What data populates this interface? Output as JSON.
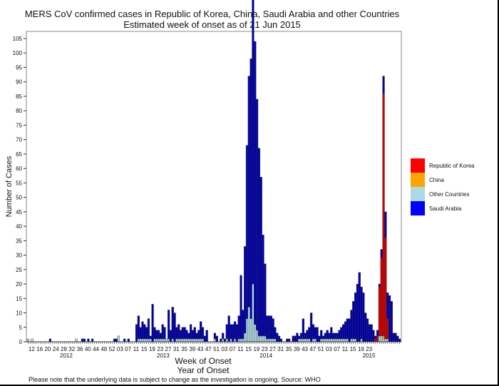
{
  "chart_data": {
    "type": "bar",
    "stacked": true,
    "title": "MERS CoV confirmed cases in Republic of Korea, China, Saudi Arabia and other Countries",
    "subtitle": "Estimated week of onset as of 21 Jun 2015",
    "xlabel": "Week of Onset",
    "xlabel2": "Year of Onset",
    "ylabel": "Number of Cases",
    "ylim": [
      0,
      107
    ],
    "yticks": [
      0,
      5,
      10,
      15,
      20,
      25,
      30,
      35,
      40,
      45,
      50,
      55,
      60,
      65,
      70,
      75,
      80,
      85,
      90,
      95,
      100,
      105
    ],
    "x_start": {
      "year": 2012,
      "week": 12
    },
    "x_week_ticks": [
      "12",
      "16",
      "20",
      "24",
      "28",
      "32",
      "36",
      "40",
      "44",
      "48",
      "52",
      "03",
      "07",
      "11",
      "15",
      "19",
      "23",
      "27",
      "31",
      "35",
      "39",
      "43",
      "47",
      "51",
      "03",
      "07",
      "11",
      "15",
      "19",
      "23",
      "27",
      "31",
      "35",
      "39",
      "43",
      "47",
      "51",
      "03",
      "07",
      "11",
      "15",
      "19",
      "23"
    ],
    "x_year_labels": [
      {
        "label": "2012",
        "week_index": 20
      },
      {
        "label": "2013",
        "week_index": 69
      },
      {
        "label": "2014",
        "week_index": 121
      },
      {
        "label": "2015",
        "week_index": 173
      }
    ],
    "legend": [
      {
        "name": "Republic of Korea",
        "color": "#ff0000"
      },
      {
        "name": "China",
        "color": "#ffa500"
      },
      {
        "name": "Other Countries",
        "color": "#add8e6"
      },
      {
        "name": "Saudi Arabia",
        "color": "#0000ff"
      }
    ],
    "series": [
      {
        "name": "Saudi Arabia",
        "color": "#0000aa",
        "values": [
          0,
          0,
          0,
          0,
          0,
          0,
          0,
          0,
          0,
          0,
          0,
          1,
          0,
          0,
          0,
          0,
          0,
          0,
          0,
          0,
          0,
          0,
          0,
          0,
          0,
          0,
          0,
          1,
          1,
          0,
          1,
          0,
          1,
          0,
          0,
          0,
          0,
          0,
          0,
          0,
          0,
          0,
          0,
          1,
          1,
          0,
          0,
          0,
          1,
          0,
          1,
          0,
          0,
          0,
          6,
          8,
          4,
          6,
          5,
          4,
          7,
          1,
          13,
          4,
          3,
          3,
          2,
          5,
          4,
          0,
          10,
          4,
          11,
          10,
          4,
          5,
          3,
          4,
          4,
          3,
          2,
          5,
          3,
          4,
          2,
          3,
          6,
          4,
          2,
          4,
          0,
          0,
          0,
          2,
          2,
          0,
          1,
          2,
          1,
          5,
          9,
          5,
          6,
          6,
          6,
          8,
          22,
          10,
          30,
          60,
          80,
          90,
          100,
          98,
          80,
          65,
          55,
          35,
          25,
          8,
          8,
          8,
          7,
          4,
          3,
          2,
          1,
          0,
          0,
          1,
          1,
          0,
          2,
          2,
          3,
          1,
          2,
          7,
          2,
          3,
          4,
          10,
          5,
          4,
          5,
          2,
          3,
          1,
          2,
          3,
          2,
          4,
          2,
          2,
          2,
          3,
          4,
          5,
          6,
          7,
          8,
          10,
          13,
          16,
          20,
          24,
          18,
          17,
          10,
          8,
          6,
          6,
          4,
          1,
          2,
          1,
          3,
          6,
          9,
          9,
          16,
          14,
          3,
          3,
          2,
          1
        ]
      },
      {
        "name": "Other Countries",
        "color": "#add8e6",
        "values": [
          1,
          0,
          1,
          0,
          0,
          0,
          0,
          0,
          0,
          0,
          0,
          0,
          0,
          0,
          0,
          0,
          0,
          0,
          0,
          0,
          0,
          0,
          0,
          0,
          1,
          0,
          0,
          0,
          0,
          0,
          0,
          0,
          0,
          0,
          0,
          0,
          0,
          0,
          0,
          0,
          0,
          0,
          0,
          0,
          0,
          2,
          0,
          0,
          0,
          0,
          0,
          0,
          0,
          0,
          0,
          1,
          1,
          1,
          1,
          1,
          1,
          1,
          0,
          1,
          1,
          1,
          1,
          1,
          1,
          1,
          1,
          0,
          1,
          0,
          1,
          1,
          1,
          1,
          1,
          1,
          1,
          1,
          1,
          1,
          1,
          1,
          1,
          1,
          0,
          0,
          0,
          0,
          0,
          1,
          0,
          0,
          0,
          1,
          0,
          1,
          0,
          1,
          0,
          1,
          0,
          1,
          1,
          1,
          3,
          8,
          12,
          8,
          20,
          6,
          4,
          2,
          2,
          2,
          2,
          1,
          1,
          1,
          1,
          1,
          0,
          0,
          0,
          0,
          0,
          0,
          0,
          0,
          0,
          0,
          0,
          1,
          1,
          1,
          1,
          1,
          1,
          0,
          1,
          1,
          0,
          0,
          1,
          1,
          1,
          1,
          1,
          1,
          1,
          1,
          1,
          1,
          1,
          1,
          1,
          1,
          0,
          1,
          1,
          1,
          0,
          0,
          1,
          0,
          0,
          0,
          0,
          0,
          0,
          0,
          0,
          2,
          2,
          1,
          1,
          1,
          0,
          0
        ]
      },
      {
        "name": "China",
        "color": "#ffa500",
        "values": [
          0,
          0,
          0,
          0,
          0,
          0,
          0,
          0,
          0,
          0,
          0,
          0,
          0,
          0,
          0,
          0,
          0,
          0,
          0,
          0,
          0,
          0,
          0,
          0,
          0,
          0,
          0,
          0,
          0,
          0,
          0,
          0,
          0,
          0,
          0,
          0,
          0,
          0,
          0,
          0,
          0,
          0,
          0,
          0,
          0,
          0,
          0,
          0,
          0,
          0,
          0,
          0,
          0,
          0,
          0,
          0,
          0,
          0,
          0,
          0,
          0,
          0,
          0,
          0,
          0,
          0,
          0,
          0,
          0,
          0,
          0,
          0,
          0,
          0,
          0,
          0,
          0,
          0,
          0,
          0,
          0,
          0,
          0,
          0,
          0,
          0,
          0,
          0,
          0,
          0,
          0,
          0,
          0,
          0,
          0,
          0,
          0,
          0,
          0,
          0,
          0,
          0,
          0,
          0,
          0,
          0,
          0,
          0,
          0,
          0,
          0,
          0,
          0,
          0,
          0,
          0,
          0,
          0,
          0,
          0,
          0,
          0,
          0,
          0,
          0,
          0,
          0,
          0,
          0,
          0,
          0,
          0,
          0,
          0,
          0,
          0,
          0,
          0,
          0,
          0,
          0,
          0,
          0,
          0,
          0,
          0,
          0,
          0,
          0,
          0,
          0,
          0,
          0,
          0,
          0,
          0,
          0,
          0,
          0,
          0,
          0,
          0,
          0,
          0,
          0,
          0,
          0,
          0,
          0,
          0,
          0,
          0,
          0,
          0,
          0,
          0,
          0,
          1,
          0,
          0,
          0,
          0,
          0
        ]
      },
      {
        "name": "Republic of Korea",
        "color": "#cc0000",
        "values": [
          0,
          0,
          0,
          0,
          0,
          0,
          0,
          0,
          0,
          0,
          0,
          0,
          0,
          0,
          0,
          0,
          0,
          0,
          0,
          0,
          0,
          0,
          0,
          0,
          0,
          0,
          0,
          0,
          0,
          0,
          0,
          0,
          0,
          0,
          0,
          0,
          0,
          0,
          0,
          0,
          0,
          0,
          0,
          0,
          0,
          0,
          0,
          0,
          0,
          0,
          0,
          0,
          0,
          0,
          0,
          0,
          0,
          0,
          0,
          0,
          0,
          0,
          0,
          0,
          0,
          0,
          0,
          0,
          0,
          0,
          0,
          0,
          0,
          0,
          0,
          0,
          0,
          0,
          0,
          0,
          0,
          0,
          0,
          0,
          0,
          0,
          0,
          0,
          0,
          0,
          0,
          0,
          0,
          0,
          0,
          0,
          0,
          0,
          0,
          0,
          0,
          0,
          0,
          0,
          0,
          0,
          0,
          0,
          0,
          0,
          0,
          0,
          0,
          0,
          0,
          0,
          0,
          0,
          0,
          0,
          0,
          0,
          0,
          0,
          0,
          0,
          0,
          0,
          0,
          0,
          0,
          0,
          0,
          0,
          0,
          0,
          0,
          0,
          0,
          0,
          0,
          0,
          0,
          0,
          0,
          0,
          0,
          0,
          0,
          0,
          0,
          0,
          0,
          0,
          0,
          0,
          0,
          0,
          0,
          0,
          0,
          0,
          0,
          0,
          0,
          0,
          0,
          0,
          0,
          0,
          0,
          0,
          0,
          1,
          2,
          17,
          27,
          84,
          35,
          7,
          0,
          0,
          0
        ]
      }
    ]
  },
  "footnote": "Please note that the underlying data is subject to change as the investigation is ongoing. Source: WHO"
}
